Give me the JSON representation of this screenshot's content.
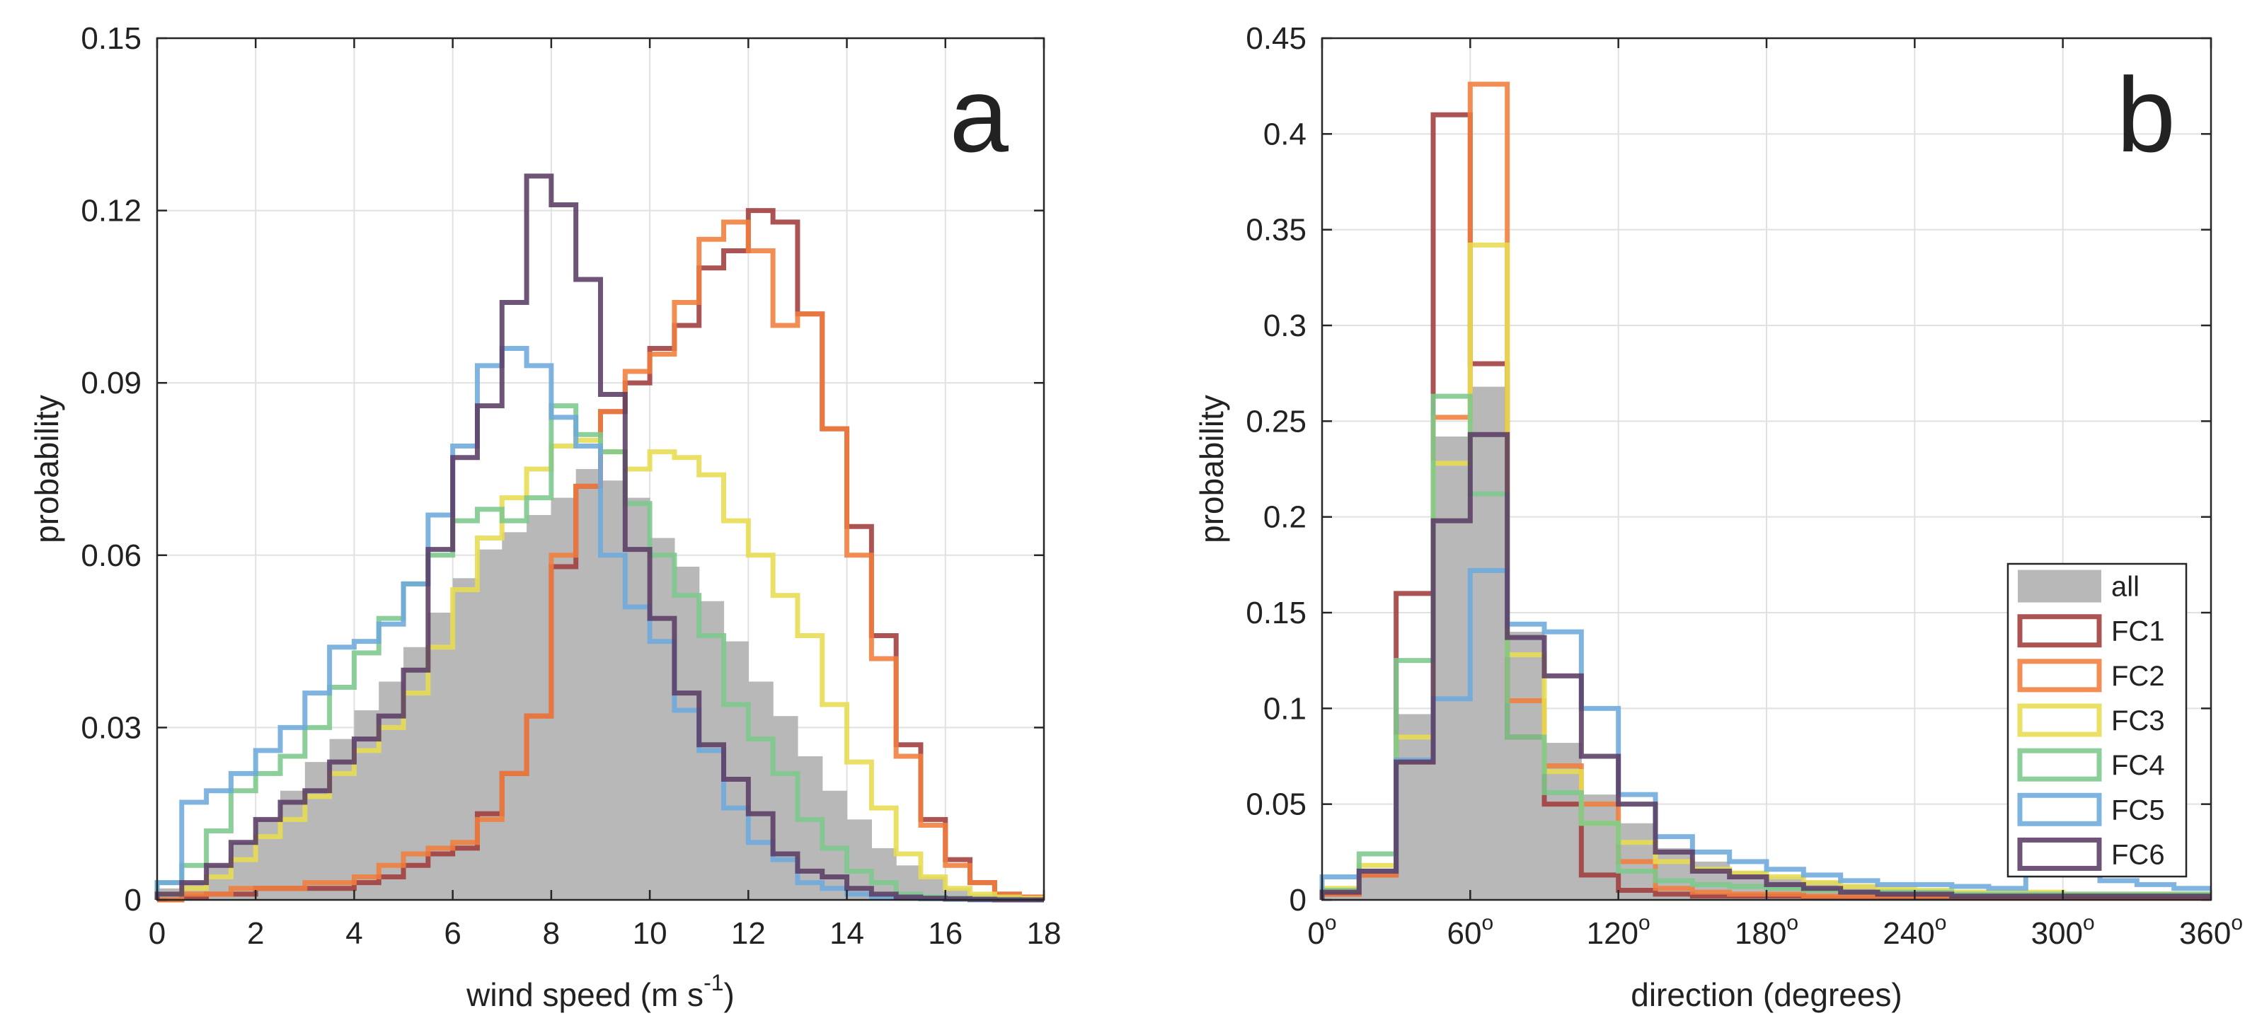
{
  "chart_data": [
    {
      "type": "histogram",
      "panel_label": "a",
      "xlabel_main": "wind speed (m s",
      "xlabel_sup": "-1",
      "xlabel_end": ")",
      "ylabel": "probability",
      "xlim": [
        0,
        18
      ],
      "ylim": [
        0,
        0.15
      ],
      "xticks": [
        0,
        2,
        4,
        6,
        8,
        10,
        12,
        14,
        16,
        18
      ],
      "xtick_labels": [
        "0",
        "2",
        "4",
        "6",
        "8",
        "10",
        "12",
        "14",
        "16",
        "18"
      ],
      "yticks": [
        0,
        0.03,
        0.06,
        0.09,
        0.12,
        0.15
      ],
      "ytick_labels": [
        "0",
        "0.03",
        "0.06",
        "0.09",
        "0.12",
        "0.15"
      ],
      "bin_edges_start": 0,
      "bin_width": 0.5,
      "series": [
        {
          "name": "all",
          "values": [
            0.002,
            0.003,
            0.006,
            0.01,
            0.014,
            0.019,
            0.024,
            0.028,
            0.033,
            0.038,
            0.044,
            0.05,
            0.056,
            0.061,
            0.064,
            0.067,
            0.07,
            0.075,
            0.073,
            0.07,
            0.063,
            0.058,
            0.052,
            0.045,
            0.038,
            0.032,
            0.025,
            0.019,
            0.014,
            0.009,
            0.006,
            0.004,
            0.002,
            0.001,
            0.0005,
            0.0003
          ]
        },
        {
          "name": "FC1",
          "values": [
            0,
            0.0005,
            0.001,
            0.001,
            0.002,
            0.002,
            0.002,
            0.002,
            0.003,
            0.004,
            0.006,
            0.008,
            0.009,
            0.015,
            0.022,
            0.032,
            0.058,
            0.072,
            0.085,
            0.09,
            0.096,
            0.1,
            0.11,
            0.113,
            0.12,
            0.118,
            0.102,
            0.082,
            0.065,
            0.046,
            0.027,
            0.014,
            0.007,
            0.003,
            0.001,
            0.0005
          ]
        },
        {
          "name": "FC2",
          "values": [
            0,
            0.001,
            0.001,
            0.002,
            0.002,
            0.002,
            0.003,
            0.003,
            0.004,
            0.006,
            0.008,
            0.009,
            0.01,
            0.014,
            0.022,
            0.032,
            0.06,
            0.072,
            0.085,
            0.092,
            0.095,
            0.104,
            0.115,
            0.118,
            0.113,
            0.1,
            0.102,
            0.082,
            0.06,
            0.042,
            0.025,
            0.013,
            0.006,
            0.003,
            0.001,
            0.0005
          ]
        },
        {
          "name": "FC3",
          "values": [
            0.001,
            0.002,
            0.004,
            0.007,
            0.011,
            0.014,
            0.018,
            0.022,
            0.026,
            0.03,
            0.036,
            0.044,
            0.054,
            0.063,
            0.07,
            0.075,
            0.079,
            0.08,
            0.078,
            0.075,
            0.078,
            0.077,
            0.074,
            0.066,
            0.06,
            0.053,
            0.046,
            0.034,
            0.024,
            0.016,
            0.008,
            0.004,
            0.002,
            0.001,
            0.0005,
            0.0003
          ]
        },
        {
          "name": "FC4",
          "values": [
            0.003,
            0.006,
            0.012,
            0.019,
            0.022,
            0.025,
            0.03,
            0.037,
            0.043,
            0.049,
            0.055,
            0.06,
            0.066,
            0.068,
            0.066,
            0.07,
            0.086,
            0.081,
            0.078,
            0.069,
            0.06,
            0.053,
            0.046,
            0.034,
            0.028,
            0.022,
            0.014,
            0.009,
            0.005,
            0.003,
            0.001,
            0.0005,
            0.0003,
            0.0002,
            0.0001,
            0
          ]
        },
        {
          "name": "FC5",
          "values": [
            0.003,
            0.017,
            0.019,
            0.022,
            0.026,
            0.03,
            0.036,
            0.044,
            0.045,
            0.048,
            0.055,
            0.067,
            0.079,
            0.093,
            0.096,
            0.093,
            0.084,
            0.079,
            0.06,
            0.051,
            0.045,
            0.033,
            0.026,
            0.016,
            0.01,
            0.007,
            0.003,
            0.002,
            0.001,
            0.0005,
            0.0003,
            0.0002,
            0.0001,
            0,
            0,
            0
          ]
        },
        {
          "name": "FC6",
          "values": [
            0.001,
            0.003,
            0.006,
            0.01,
            0.014,
            0.017,
            0.019,
            0.024,
            0.028,
            0.032,
            0.04,
            0.061,
            0.077,
            0.086,
            0.104,
            0.126,
            0.121,
            0.108,
            0.088,
            0.061,
            0.049,
            0.036,
            0.027,
            0.021,
            0.015,
            0.008,
            0.005,
            0.004,
            0.002,
            0.001,
            0.0005,
            0.0003,
            0.0002,
            0.0001,
            0,
            0
          ]
        }
      ]
    },
    {
      "type": "histogram",
      "panel_label": "b",
      "xlabel": "direction (degrees)",
      "ylabel": "probability",
      "xlim": [
        0,
        360
      ],
      "ylim": [
        0,
        0.45
      ],
      "xticks": [
        0,
        60,
        120,
        180,
        240,
        300,
        360
      ],
      "xtick_labels": [
        "0",
        "60",
        "120",
        "180",
        "240",
        "300",
        "360"
      ],
      "xtick_sup": "o",
      "yticks": [
        0,
        0.05,
        0.1,
        0.15,
        0.2,
        0.25,
        0.3,
        0.35,
        0.4,
        0.45
      ],
      "ytick_labels": [
        "0",
        "0.05",
        "0.1",
        "0.15",
        "0.2",
        "0.25",
        "0.3",
        "0.35",
        "0.4",
        "0.45"
      ],
      "bin_edges_start": 0,
      "bin_width": 15,
      "series": [
        {
          "name": "all",
          "values": [
            0.003,
            0.013,
            0.097,
            0.242,
            0.268,
            0.14,
            0.082,
            0.055,
            0.04,
            0.027,
            0.02,
            0.015,
            0.012,
            0.01,
            0.008,
            0.006,
            0.005,
            0.004,
            0.003,
            0.003,
            0.003,
            0.003,
            0.003,
            0.003
          ]
        },
        {
          "name": "FC1",
          "values": [
            0.003,
            0.013,
            0.16,
            0.41,
            0.28,
            0.085,
            0.05,
            0.013,
            0.005,
            0.003,
            0.002,
            0.002,
            0.002,
            0.001,
            0.001,
            0.001,
            0.001,
            0.001,
            0.001,
            0.001,
            0.001,
            0.001,
            0.001,
            0.001
          ]
        },
        {
          "name": "FC2",
          "values": [
            0.003,
            0.013,
            0.072,
            0.252,
            0.426,
            0.104,
            0.07,
            0.05,
            0.02,
            0.006,
            0.004,
            0.003,
            0.003,
            0.002,
            0.002,
            0.002,
            0.002,
            0.002,
            0.002,
            0.002,
            0.002,
            0.002,
            0.002,
            0.002
          ]
        },
        {
          "name": "FC3",
          "values": [
            0.006,
            0.018,
            0.085,
            0.228,
            0.342,
            0.128,
            0.067,
            0.04,
            0.03,
            0.02,
            0.016,
            0.014,
            0.012,
            0.009,
            0.007,
            0.006,
            0.005,
            0.004,
            0.004,
            0.004,
            0.003,
            0.003,
            0.003,
            0.003
          ]
        },
        {
          "name": "FC4",
          "values": [
            0.005,
            0.024,
            0.125,
            0.263,
            0.212,
            0.085,
            0.056,
            0.04,
            0.015,
            0.01,
            0.008,
            0.007,
            0.006,
            0.005,
            0.004,
            0.004,
            0.004,
            0.003,
            0.003,
            0.003,
            0.003,
            0.003,
            0.003,
            0.003
          ]
        },
        {
          "name": "FC5",
          "values": [
            0.012,
            0.015,
            0.073,
            0.105,
            0.172,
            0.144,
            0.14,
            0.1,
            0.055,
            0.033,
            0.025,
            0.02,
            0.016,
            0.013,
            0.01,
            0.008,
            0.008,
            0.007,
            0.006,
            0.013,
            0.013,
            0.01,
            0.008,
            0.006
          ]
        },
        {
          "name": "FC6",
          "values": [
            0.004,
            0.015,
            0.072,
            0.198,
            0.243,
            0.137,
            0.117,
            0.075,
            0.05,
            0.025,
            0.015,
            0.012,
            0.008,
            0.006,
            0.004,
            0.003,
            0.003,
            0.002,
            0.002,
            0.002,
            0.002,
            0.002,
            0.002,
            0.002
          ]
        }
      ]
    }
  ],
  "legend": {
    "entries": [
      "all",
      "FC1",
      "FC2",
      "FC3",
      "FC4",
      "FC5",
      "FC6"
    ],
    "placement": "lower-right of panel b"
  },
  "colors": {
    "all": "#b8b8b8",
    "FC1": "#a03c3c",
    "FC2": "#f07d3c",
    "FC3": "#e6dc50",
    "FC4": "#7cc88c",
    "FC5": "#6eaadc",
    "FC6": "#5a3c64",
    "grid": "#e1e1e1",
    "axis": "#262626"
  }
}
